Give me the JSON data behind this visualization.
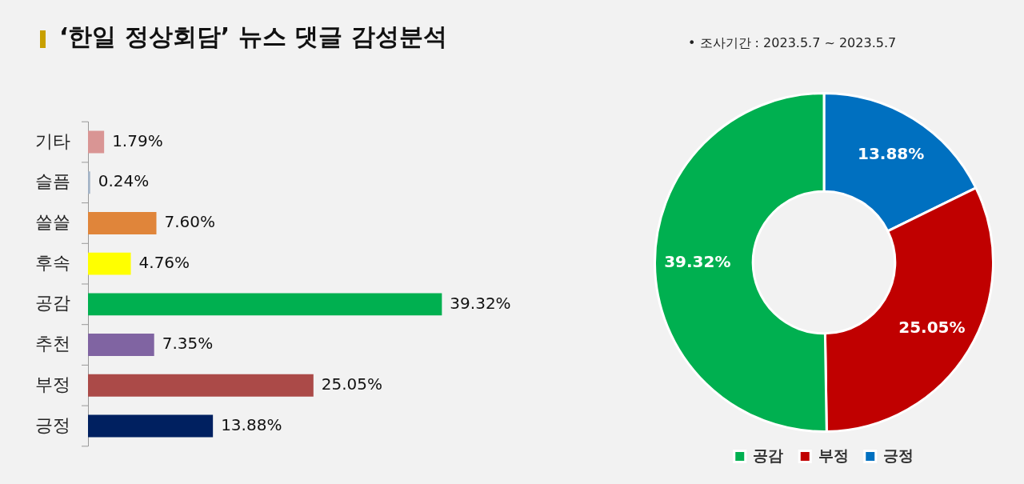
{
  "chart_data": [
    {
      "type": "bar",
      "title": "‘한일 정상회담’ 뉴스 댓글 감성분석",
      "orientation": "horizontal",
      "categories": [
        "기타",
        "슬픔",
        "쓸쓸",
        "후속",
        "공감",
        "추천",
        "부정",
        "긍정"
      ],
      "values": [
        1.79,
        0.24,
        7.6,
        4.76,
        39.32,
        7.35,
        25.05,
        13.88
      ],
      "value_labels": [
        "1.79%",
        "0.24%",
        "7.60%",
        "4.76%",
        "39.32%",
        "7.35%",
        "25.05%",
        "13.88%"
      ],
      "colors": [
        "#d99594",
        "#a3b3c6",
        "#e0853a",
        "#ffff00",
        "#00b050",
        "#8064a2",
        "#ab4a48",
        "#002060"
      ]
    },
    {
      "type": "donut",
      "legend": "bottom",
      "annotations": [
        "•  조사기간 : 2023.5.7 ~ 2023.5.7"
      ],
      "categories": [
        "긍정",
        "부정",
        "공감"
      ],
      "values": [
        13.88,
        25.05,
        39.32
      ],
      "value_labels": [
        "13.88%",
        "25.05%",
        "39.32%"
      ],
      "colors": [
        "#0070c0",
        "#c00000",
        "#00b050"
      ]
    }
  ]
}
